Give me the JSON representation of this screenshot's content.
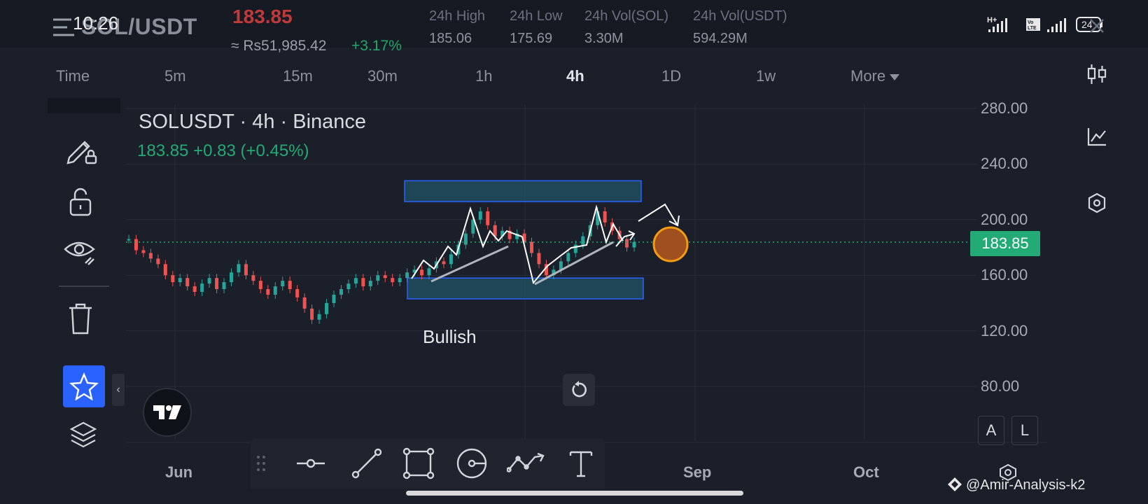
{
  "status_bar": {
    "time": "10:26",
    "network": "H+",
    "volte": "Vo LTE",
    "battery": "24"
  },
  "header": {
    "pair": "SOL/USDT",
    "last_price": "183.85",
    "price_local": "≈ Rs51,985.42",
    "change_pct": "+3.17%",
    "stats": [
      {
        "label": "24h High",
        "value": "185.06"
      },
      {
        "label": "24h Low",
        "value": "175.69"
      },
      {
        "label": "24h Vol(SOL)",
        "value": "3.30M"
      },
      {
        "label": "24h Vol(USDT)",
        "value": "594.29M"
      }
    ]
  },
  "timeframes": {
    "items": [
      "Time",
      "5m",
      "15m",
      "30m",
      "1h",
      "4h",
      "1D",
      "1w",
      "More"
    ],
    "active": "4h"
  },
  "chart": {
    "symbol_title": "SOLUSDT · 4h · Binance",
    "price_line": "183.85  +0.83 (+0.45%)",
    "current_price_label": "183.85",
    "annotation_text": "Bullish",
    "scale_buttons": [
      "A",
      "L"
    ]
  },
  "chart_data": {
    "type": "line",
    "title": "SOLUSDT · 4h · Binance",
    "ylim": [
      60,
      300
    ],
    "y_ticks": [
      "280.00",
      "240.00",
      "200.00",
      "160.00",
      "120.00",
      "80.00"
    ],
    "x_ticks": [
      "Jun",
      "Sep",
      "Oct"
    ],
    "current_price": 183.85,
    "series": [
      {
        "values": [
          186,
          178,
          176,
          172,
          168,
          160,
          155,
          158,
          152,
          148,
          154,
          158,
          150,
          155,
          162,
          168,
          160,
          156,
          150,
          146,
          152,
          156,
          150,
          144,
          136,
          128,
          132,
          140,
          146,
          150,
          154,
          158,
          152,
          156,
          160,
          158,
          155,
          158,
          162,
          164,
          160,
          165,
          170,
          168,
          175,
          182,
          190,
          200,
          206,
          196,
          188,
          192,
          186,
          190,
          184,
          176,
          168,
          160,
          164,
          170,
          176,
          182,
          188,
          196,
          206,
          198,
          192,
          186,
          180,
          184
        ]
      }
    ],
    "zones": [
      {
        "name": "resistance",
        "from": 213,
        "to": 228
      },
      {
        "name": "support",
        "from": 143,
        "to": 158
      }
    ]
  },
  "drawing_toolbar": {
    "items": [
      "horizontal-line",
      "trend-line",
      "rectangle",
      "circle",
      "path",
      "text"
    ]
  },
  "watermark": "@Amir-Analysis-k2"
}
